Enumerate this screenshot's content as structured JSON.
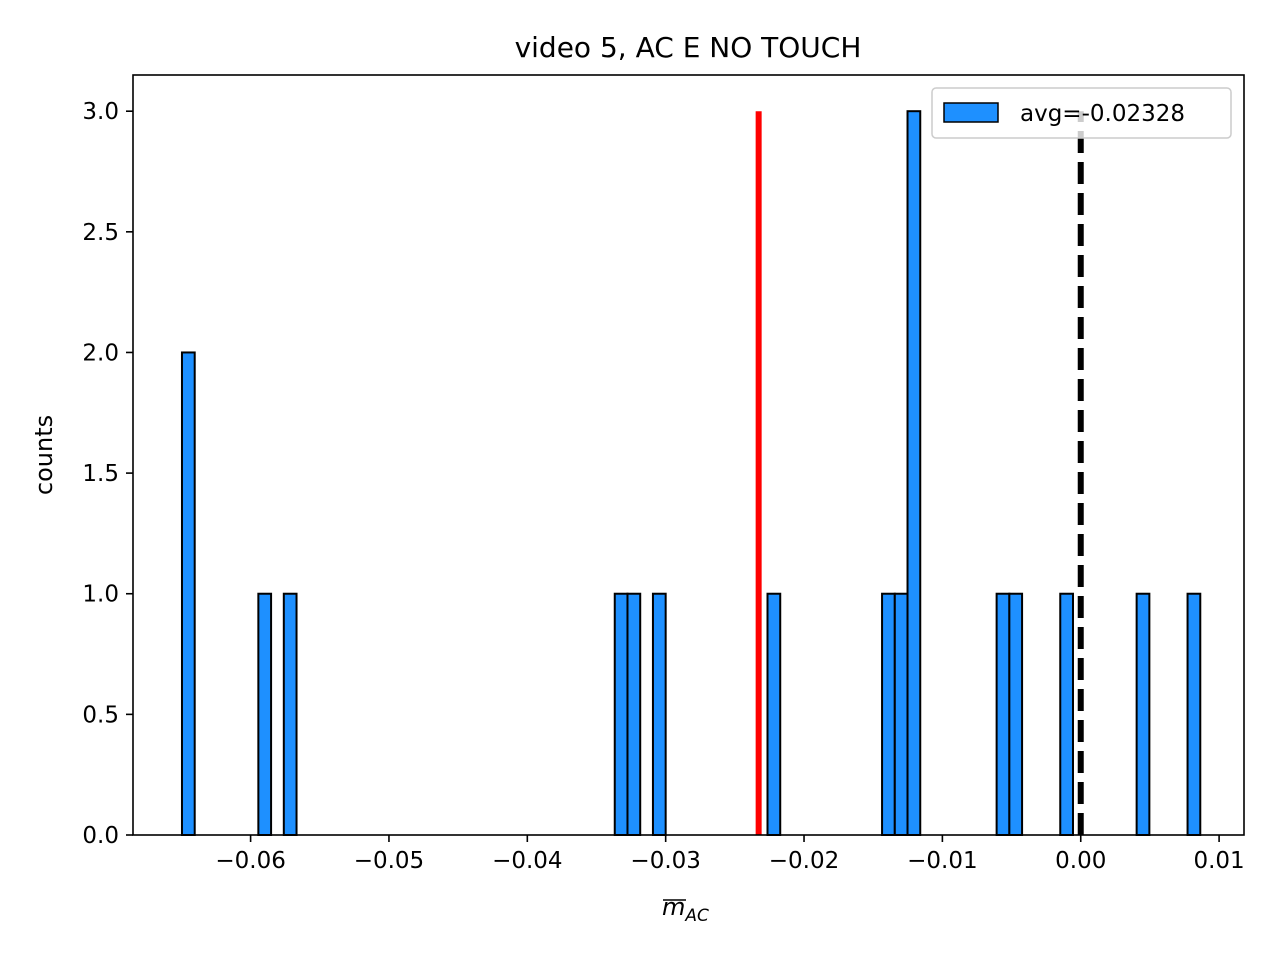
{
  "chart_data": {
    "type": "bar",
    "title": "video 5, AC E NO TOUCH",
    "xlabel": "m",
    "xlabel_sub": "AC",
    "ylabel": "counts",
    "xlim": [
      -0.0685,
      0.0118
    ],
    "ylim": [
      0,
      3.15
    ],
    "bin_width": 0.00092,
    "xticks": [
      {
        "value": -0.06,
        "label": "−0.06"
      },
      {
        "value": -0.05,
        "label": "−0.05"
      },
      {
        "value": -0.04,
        "label": "−0.04"
      },
      {
        "value": -0.03,
        "label": "−0.03"
      },
      {
        "value": -0.02,
        "label": "−0.02"
      },
      {
        "value": -0.01,
        "label": "−0.01"
      },
      {
        "value": 0.0,
        "label": "0.00"
      },
      {
        "value": 0.01,
        "label": "0.01"
      }
    ],
    "yticks": [
      {
        "value": 0.0,
        "label": "0.0"
      },
      {
        "value": 0.5,
        "label": "0.5"
      },
      {
        "value": 1.0,
        "label": "1.0"
      },
      {
        "value": 1.5,
        "label": "1.5"
      },
      {
        "value": 2.0,
        "label": "2.0"
      },
      {
        "value": 2.5,
        "label": "2.5"
      },
      {
        "value": 3.0,
        "label": "3.0"
      }
    ],
    "bins": [
      {
        "left": -0.06496,
        "count": 2
      },
      {
        "left": -0.05944,
        "count": 1
      },
      {
        "left": -0.0576,
        "count": 1
      },
      {
        "left": -0.03368,
        "count": 1
      },
      {
        "left": -0.03276,
        "count": 1
      },
      {
        "left": -0.03092,
        "count": 1
      },
      {
        "left": -0.02264,
        "count": 1
      },
      {
        "left": -0.01436,
        "count": 1
      },
      {
        "left": -0.01344,
        "count": 1
      },
      {
        "left": -0.01252,
        "count": 3
      },
      {
        "left": -0.00608,
        "count": 1
      },
      {
        "left": -0.00516,
        "count": 1
      },
      {
        "left": -0.00148,
        "count": 1
      },
      {
        "left": 0.00404,
        "count": 1
      },
      {
        "left": 0.00772,
        "count": 1
      }
    ],
    "bar_color": "#1e90ff",
    "bar_edge_color": "#000000",
    "series": [
      {
        "name": "avg=-0.02328"
      }
    ],
    "legend_placement": "top-right",
    "vlines": [
      {
        "x": -0.02328,
        "y_top": 3.0,
        "color": "#ff0000",
        "style": "solid"
      },
      {
        "x": 0.0,
        "y_top": 3.0,
        "color": "#000000",
        "style": "dashed"
      }
    ],
    "grid": false
  }
}
